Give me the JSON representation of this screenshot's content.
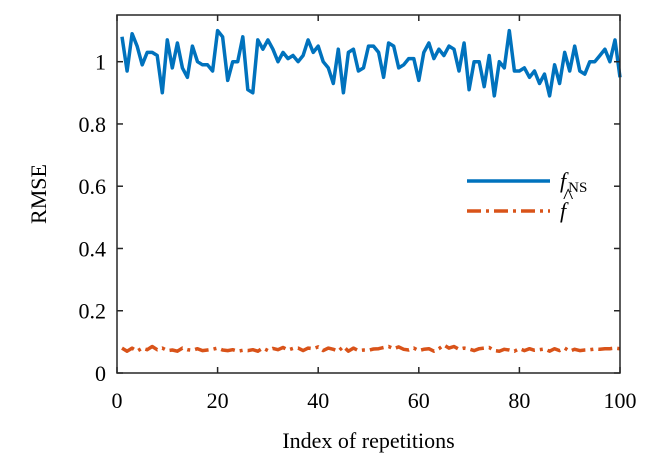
{
  "chart_data": {
    "type": "line",
    "title": "",
    "xlabel": "Index of repetitions",
    "ylabel": "RMSE",
    "xlim": [
      0,
      100
    ],
    "ylim": [
      0,
      1.15
    ],
    "xticks": [
      0,
      20,
      40,
      60,
      80,
      100
    ],
    "xtick_labels": [
      "0",
      "20",
      "40",
      "60",
      "80",
      "100"
    ],
    "yticks": [
      0,
      0.2,
      0.4,
      0.6,
      0.8,
      1
    ],
    "ytick_labels": [
      "0",
      "0.2",
      "0.4",
      "0.6",
      "0.8",
      "1"
    ],
    "grid": false,
    "legend_position": "center-right",
    "x": [
      1,
      2,
      3,
      4,
      5,
      6,
      7,
      8,
      9,
      10,
      11,
      12,
      13,
      14,
      15,
      16,
      17,
      18,
      19,
      20,
      21,
      22,
      23,
      24,
      25,
      26,
      27,
      28,
      29,
      30,
      31,
      32,
      33,
      34,
      35,
      36,
      37,
      38,
      39,
      40,
      41,
      42,
      43,
      44,
      45,
      46,
      47,
      48,
      49,
      50,
      51,
      52,
      53,
      54,
      55,
      56,
      57,
      58,
      59,
      60,
      61,
      62,
      63,
      64,
      65,
      66,
      67,
      68,
      69,
      70,
      71,
      72,
      73,
      74,
      75,
      76,
      77,
      78,
      79,
      80,
      81,
      82,
      83,
      84,
      85,
      86,
      87,
      88,
      89,
      90,
      91,
      92,
      93,
      94,
      95,
      96,
      97,
      98,
      99,
      100
    ],
    "series": [
      {
        "name": "f_NS",
        "legend_main": "f",
        "legend_sub": "NS",
        "color": "#0072BD",
        "dash": "solid",
        "values": [
          1.08,
          0.97,
          1.09,
          1.05,
          0.99,
          1.03,
          1.03,
          1.02,
          0.9,
          1.07,
          0.98,
          1.06,
          0.98,
          0.95,
          1.05,
          1.0,
          0.99,
          0.99,
          0.97,
          1.1,
          1.08,
          0.94,
          1.0,
          1.0,
          1.08,
          0.91,
          0.9,
          1.07,
          1.04,
          1.07,
          1.04,
          1.0,
          1.03,
          1.01,
          1.02,
          1.0,
          1.02,
          1.07,
          1.03,
          1.05,
          1.0,
          0.98,
          0.93,
          1.04,
          0.9,
          1.03,
          1.04,
          0.97,
          0.98,
          1.05,
          1.05,
          1.03,
          0.95,
          1.06,
          1.05,
          0.98,
          0.99,
          1.01,
          1.01,
          0.94,
          1.03,
          1.06,
          1.01,
          1.04,
          1.02,
          1.05,
          1.04,
          0.97,
          1.06,
          0.91,
          1.0,
          1.0,
          0.92,
          1.02,
          0.89,
          1.0,
          0.98,
          1.1,
          0.97,
          0.97,
          0.98,
          0.95,
          0.97,
          0.93,
          0.96,
          0.89,
          0.99,
          0.93,
          1.03,
          0.97,
          1.05,
          0.97,
          0.96,
          1.0,
          1.0,
          1.02,
          1.04,
          1.0,
          1.07,
          0.95
        ]
      },
      {
        "name": "f_hat",
        "legend_main": "f",
        "legend_accent": "^",
        "color": "#D95319",
        "dash": "dashdot",
        "values": [
          0.08,
          0.07,
          0.08,
          0.07,
          0.08,
          0.075,
          0.085,
          0.075,
          0.08,
          0.072,
          0.074,
          0.07,
          0.08,
          0.075,
          0.073,
          0.078,
          0.072,
          0.074,
          0.076,
          0.08,
          0.074,
          0.072,
          0.075,
          0.07,
          0.073,
          0.072,
          0.075,
          0.07,
          0.08,
          0.072,
          0.079,
          0.075,
          0.082,
          0.074,
          0.079,
          0.08,
          0.072,
          0.08,
          0.078,
          0.084,
          0.072,
          0.08,
          0.076,
          0.07,
          0.085,
          0.07,
          0.08,
          0.072,
          0.074,
          0.073,
          0.077,
          0.078,
          0.082,
          0.085,
          0.078,
          0.084,
          0.076,
          0.074,
          0.08,
          0.072,
          0.076,
          0.078,
          0.07,
          0.078,
          0.09,
          0.08,
          0.085,
          0.076,
          0.08,
          0.077,
          0.072,
          0.078,
          0.08,
          0.082,
          0.072,
          0.07,
          0.076,
          0.074,
          0.07,
          0.078,
          0.072,
          0.078,
          0.073,
          0.075,
          0.077,
          0.07,
          0.078,
          0.072,
          0.08,
          0.07,
          0.076,
          0.072,
          0.074,
          0.075,
          0.077,
          0.076,
          0.078,
          0.078,
          0.08,
          0.078
        ]
      }
    ]
  }
}
